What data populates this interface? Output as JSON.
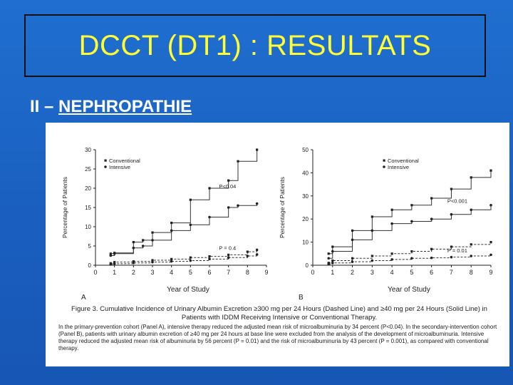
{
  "slide": {
    "title": "DCCT (DT1) : RESULTATS",
    "subtitle_prefix": "II – ",
    "subtitle_link": "NEPHROPATHIE"
  },
  "colors": {
    "background": "#1a5fc0",
    "title": "#ffff33",
    "subtitle": "#ffffff"
  },
  "chart_data": [
    {
      "type": "line",
      "panel_label": "A",
      "xlabel": "Year of Study",
      "ylabel": "Percentage of Patients",
      "xlim": [
        0,
        9
      ],
      "ylim": [
        0,
        30
      ],
      "xticks": [
        0,
        1,
        2,
        3,
        4,
        5,
        6,
        7,
        8,
        9
      ],
      "yticks": [
        0,
        5,
        10,
        15,
        20,
        25,
        30
      ],
      "legend": [
        "Conventional",
        "Intensive"
      ],
      "legend_position": "top-left",
      "annotations": [
        "P<0.04",
        "P = 0.4"
      ],
      "series": [
        {
          "name": "Conventional",
          "style": "solid",
          "x": [
            0.8,
            1,
            2,
            2.5,
            3,
            4,
            5,
            6,
            7,
            7.5,
            8.5
          ],
          "y": [
            3,
            3.2,
            6,
            6.5,
            8.5,
            11,
            17,
            20,
            22,
            27,
            30
          ]
        },
        {
          "name": "Intensive",
          "style": "solid",
          "x": [
            0.8,
            1,
            2,
            2.5,
            3,
            4,
            5,
            6,
            7,
            7.5,
            8.5
          ],
          "y": [
            2.5,
            3,
            4.5,
            5,
            6.5,
            9,
            10.5,
            12.5,
            15,
            15.5,
            16
          ]
        },
        {
          "name": "Conventional",
          "style": "dashed",
          "x": [
            0.8,
            1,
            2,
            3,
            4,
            5,
            6,
            7,
            8,
            8.5
          ],
          "y": [
            0.5,
            0.8,
            1,
            1.3,
            1.6,
            2,
            2.3,
            2.7,
            3.5,
            4
          ]
        },
        {
          "name": "Intensive",
          "style": "dashed",
          "x": [
            0.8,
            1,
            2,
            3,
            4,
            5,
            6,
            7,
            8,
            8.5
          ],
          "y": [
            0.2,
            0.4,
            0.6,
            0.8,
            1,
            1.2,
            1.6,
            2,
            2.4,
            2.8
          ]
        }
      ]
    },
    {
      "type": "line",
      "panel_label": "B",
      "xlabel": "Year of Study",
      "ylabel": "Percentage of Patients",
      "xlim": [
        0,
        9
      ],
      "ylim": [
        0,
        50
      ],
      "xticks": [
        0,
        1,
        2,
        3,
        4,
        5,
        6,
        7,
        8,
        9
      ],
      "yticks": [
        0,
        10,
        20,
        30,
        40,
        50
      ],
      "legend": [
        "Conventional",
        "Intensive"
      ],
      "legend_position": "top-right",
      "annotations": [
        "P<0.001",
        "P = 0.01"
      ],
      "series": [
        {
          "name": "Conventional",
          "style": "solid",
          "x": [
            0.8,
            1,
            2,
            3,
            4,
            5,
            6,
            7,
            8,
            9
          ],
          "y": [
            5,
            8,
            15,
            21,
            24,
            26,
            29,
            33,
            38,
            41
          ]
        },
        {
          "name": "Intensive",
          "style": "solid",
          "x": [
            0.8,
            1,
            2,
            3,
            4,
            5,
            6,
            7,
            8,
            9
          ],
          "y": [
            3,
            6,
            11,
            15,
            18,
            19,
            20,
            22,
            24,
            26
          ]
        },
        {
          "name": "Conventional",
          "style": "dashed",
          "x": [
            0.8,
            1,
            2,
            3,
            4,
            5,
            6,
            7,
            8,
            9
          ],
          "y": [
            1,
            2,
            3,
            4,
            5,
            6,
            7,
            8,
            9,
            10
          ]
        },
        {
          "name": "Intensive",
          "style": "dashed",
          "x": [
            0.8,
            1,
            2,
            3,
            4,
            5,
            6,
            7,
            8,
            9
          ],
          "y": [
            0.5,
            1,
            1.5,
            2,
            2.5,
            3,
            3.2,
            3.5,
            4,
            4.5
          ]
        }
      ]
    }
  ],
  "caption": {
    "main": "Figure 3. Cumulative Incidence of Urinary Albumin Excretion ≥300 mg per 24 Hours (Dashed Line) and ≥40 mg per 24 Hours (Solid Line) in Patients with IDDM Receiving Intensive or Conventional Therapy.",
    "body": "In the primary-prevention cohort (Panel A), intensive therapy reduced the adjusted mean risk of microalbuminuria by 34 percent (P<0.04). In the secondary-intervention cohort (Panel B), patients with urinary albumin excretion of ≥40 mg per 24 hours at base line were excluded from the analysis of the development of microalbuminuria. Intensive therapy reduced the adjusted mean risk of albuminuria by 56 percent (P = 0.01) and the risk of microalbuminuria by 43 percent (P = 0.001), as compared with conventional therapy."
  }
}
